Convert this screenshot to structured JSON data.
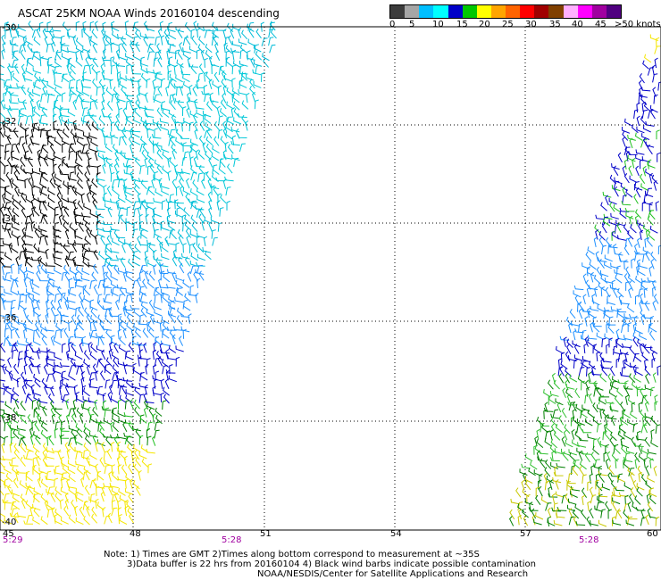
{
  "title": "ASCAT 25KM NOAA Winds 20160104 descending",
  "legend": {
    "colors": [
      "#3c3c3c",
      "#a6a6a6",
      "#00bfff",
      "#00ffff",
      "#0000c8",
      "#00c800",
      "#ffff00",
      "#ffa500",
      "#ff6400",
      "#ff0000",
      "#a00000",
      "#804000",
      "#ffb0ff",
      "#ff00ff",
      "#a000a0",
      "#500080"
    ],
    "labels": [
      "0",
      "5",
      "10",
      "15",
      "20",
      "25",
      "30",
      "35",
      "40",
      "45",
      ">50 knots"
    ]
  },
  "axes": {
    "lat_labels": [
      "-30",
      "-32",
      "-34",
      "-36",
      "-38",
      "-40"
    ],
    "lon_labels": [
      "45",
      "48",
      "51",
      "54",
      "57",
      "60"
    ]
  },
  "times": [
    "5:29",
    "5:28",
    "5:28"
  ],
  "notes": {
    "line1": "Note: 1) Times are GMT 2)Times along bottom correspond to measurement at ~35S",
    "line2": "3)Data buffer is 22 hrs from 20160104 4) Black wind barbs indicate possible contamination",
    "line3": "NOAA/NESDIS/Center for Satellite Applications and Research"
  }
}
